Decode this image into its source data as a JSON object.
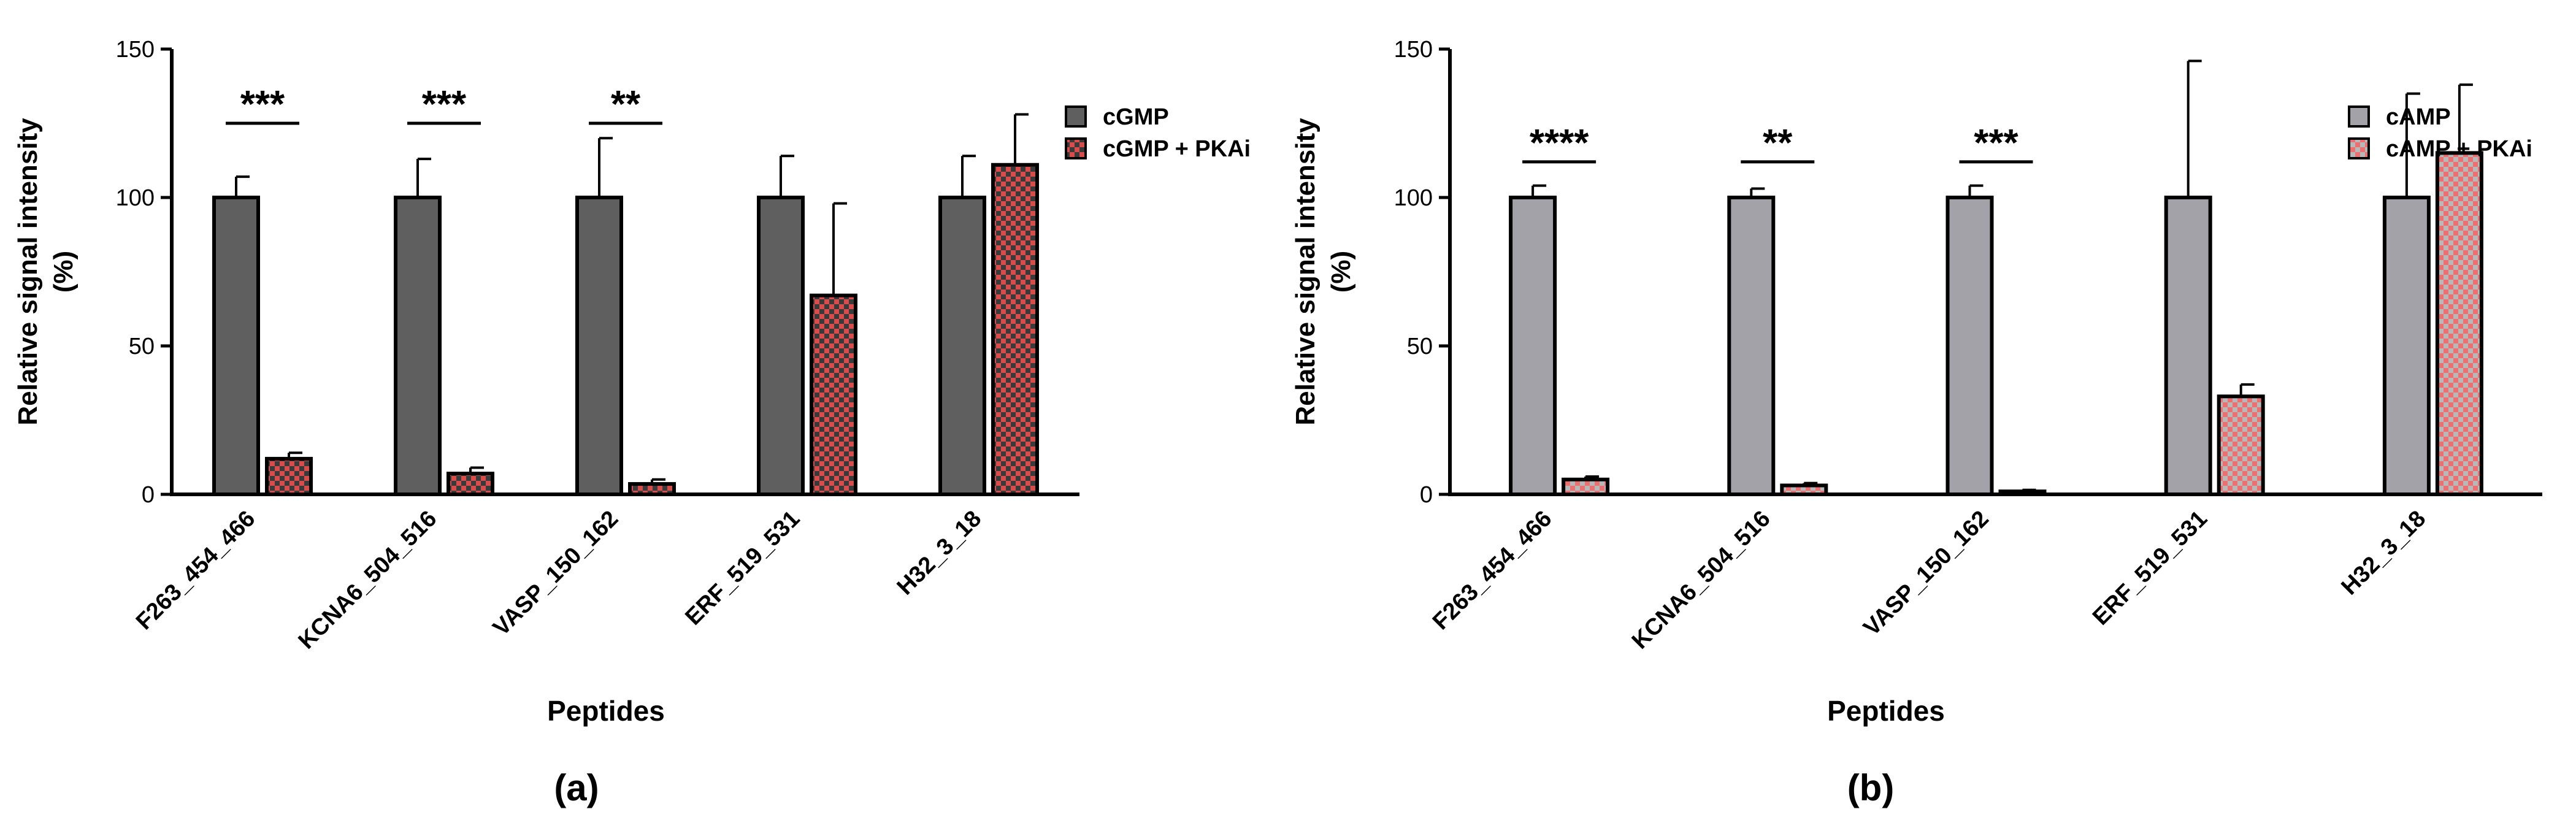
{
  "chart_data": [
    {
      "type": "bar",
      "panel_label": "(a)",
      "categories": [
        "F263_454_466",
        "KCNA6_504_516",
        "VASP_150_162",
        "ERF_519_531",
        "H32_3_18"
      ],
      "series": [
        {
          "name": "cGMP",
          "values": [
            100,
            100,
            100,
            100,
            100
          ],
          "errors": [
            7,
            13,
            20,
            14,
            14
          ],
          "color": "#5f5f5f",
          "pattern": "solid"
        },
        {
          "name": "cGMP + PKAi",
          "values": [
            12,
            7,
            3.5,
            67,
            111
          ],
          "errors": [
            2,
            2,
            1.5,
            31,
            17
          ],
          "color": "#d94c4c",
          "pattern_color": "#3a3a3a",
          "pattern": "checker"
        }
      ],
      "significance": [
        {
          "category_index": 0,
          "label": "***",
          "y": 125
        },
        {
          "category_index": 1,
          "label": "***",
          "y": 125
        },
        {
          "category_index": 2,
          "label": "**",
          "y": 125
        }
      ],
      "ylabel_line1": "Relative signal intensity",
      "ylabel_line2": "(%)",
      "xlabel": "Peptides",
      "ylim": [
        0,
        150
      ],
      "yticks": [
        0,
        50,
        100,
        150
      ],
      "legend_position": "right",
      "grid": false
    },
    {
      "type": "bar",
      "panel_label": "(b)",
      "categories": [
        "F263_454_466",
        "KCNA6_504_516",
        "VASP_150_162",
        "ERF_519_531",
        "H32_3_18"
      ],
      "series": [
        {
          "name": "cAMP",
          "values": [
            100,
            100,
            100,
            100,
            100
          ],
          "errors": [
            4,
            3,
            4,
            46,
            35
          ],
          "color": "#a2a2a8",
          "pattern": "solid"
        },
        {
          "name": "cAMP + PKAi",
          "values": [
            5,
            3,
            1,
            33,
            115
          ],
          "errors": [
            1,
            0.8,
            0.5,
            4,
            23
          ],
          "color": "#ee6f6f",
          "pattern_color": "#b8b8b8",
          "pattern": "checker"
        }
      ],
      "significance": [
        {
          "category_index": 0,
          "label": "****",
          "y": 112
        },
        {
          "category_index": 1,
          "label": "**",
          "y": 112
        },
        {
          "category_index": 2,
          "label": "***",
          "y": 112
        }
      ],
      "ylabel_line1": "Relative signal intensity",
      "ylabel_line2": "(%)",
      "xlabel": "Peptides",
      "ylim": [
        0,
        150
      ],
      "yticks": [
        0,
        50,
        100,
        150
      ],
      "legend_position": "right",
      "grid": false
    }
  ]
}
